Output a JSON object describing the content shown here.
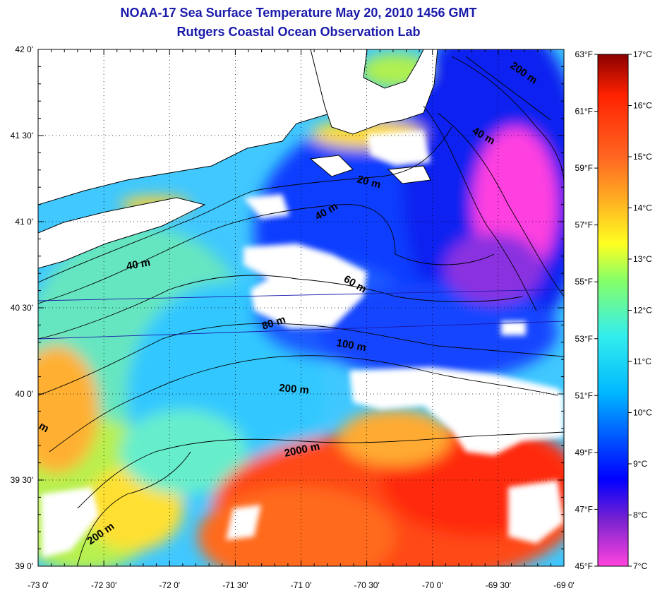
{
  "header": {
    "title": "NOAA-17 Sea Surface Temperature May 20, 2010 1456 GMT",
    "subtitle": "Rutgers Coastal Ocean Observation Lab"
  },
  "axes": {
    "lon_ticks": [
      "-73 0'",
      "-72 30'",
      "-72 0'",
      "-71 30'",
      "-71 0'",
      "-70 30'",
      "-70 0'",
      "-69 30'",
      "-69 0'"
    ],
    "lat_ticks": [
      "42 0'",
      "41 30'",
      "41 0'",
      "40 30'",
      "40 0'",
      "39 30'",
      "39 0'"
    ],
    "lon_range": [
      -73,
      -69
    ],
    "lat_range": [
      39,
      42
    ],
    "grid": "dotted"
  },
  "colorbar": {
    "celsius_labels": [
      "17°C",
      "16°C",
      "15°C",
      "14°C",
      "13°C",
      "12°C",
      "11°C",
      "10°C",
      "9°C",
      "8°C",
      "7°C"
    ],
    "fahrenheit_labels": [
      "63°F",
      "61°F",
      "59°F",
      "57°F",
      "55°F",
      "53°F",
      "51°F",
      "49°F",
      "47°F",
      "45°F"
    ],
    "celsius_range": [
      7,
      17
    ],
    "fahrenheit_range": [
      45,
      63
    ],
    "colors": [
      "#ff44dd",
      "#7a22d0",
      "#0000ff",
      "#0055ff",
      "#00b8ff",
      "#33eeee",
      "#88ff66",
      "#ffff22",
      "#ffaa22",
      "#ff6622",
      "#ff2200",
      "#8b0000"
    ]
  },
  "contour_labels": [
    "200 m",
    "40 m",
    "20 m",
    "40 m",
    "40 m",
    "60 m",
    "80 m",
    "100 m",
    "200 m",
    "2000 m",
    "200 m",
    "m"
  ],
  "colors": {
    "title": "#1a1aaa",
    "land": "#ffffff",
    "cloud": "#ffffff",
    "cold_water": "#0a2cff",
    "mid_water": "#33bbff",
    "warm_water": "#ff5a1a"
  }
}
